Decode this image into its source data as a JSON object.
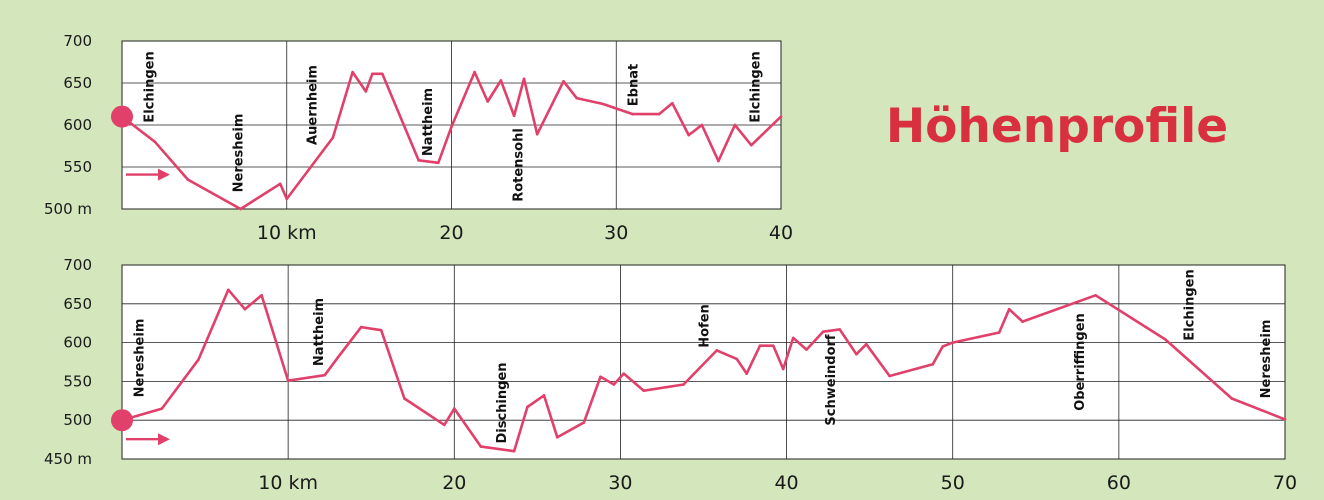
{
  "title": "Höhenprofile",
  "colors": {
    "background": "#d3e6bc",
    "line": "#e0406a",
    "title": "#d8303f"
  },
  "chart_data": [
    {
      "type": "line",
      "x_ticks": [
        "10 km",
        "20",
        "30",
        "40"
      ],
      "y_ticks": [
        "500 m",
        "550",
        "600",
        "650",
        "700"
      ],
      "xlim": [
        0,
        40
      ],
      "ylim": [
        500,
        700
      ],
      "grid": true,
      "start_marker": {
        "x": 0,
        "y": 610
      },
      "x": [
        0,
        2,
        4,
        7.2,
        9.6,
        10,
        12.8,
        14,
        14.8,
        15.2,
        15.8,
        18,
        19.2,
        20,
        21.4,
        22.2,
        23,
        23.8,
        24.4,
        25.2,
        26.8,
        27.6,
        29.2,
        31,
        32.6,
        33.4,
        34.4,
        35.2,
        36.2,
        37.2,
        38.2,
        40
      ],
      "values": [
        610,
        580,
        535,
        500,
        530,
        512,
        585,
        663,
        640,
        661,
        661,
        558,
        555,
        598,
        663,
        628,
        653,
        611,
        655,
        589,
        652,
        632,
        625,
        613,
        613,
        626,
        588,
        600,
        557,
        600,
        576,
        610
      ],
      "places": [
        {
          "name": "Elchingen",
          "x": 1.6
        },
        {
          "name": "Neresheim",
          "x": 7.0
        },
        {
          "name": "Auernheim",
          "x": 11.5
        },
        {
          "name": "Nattheim",
          "x": 18.5
        },
        {
          "name": "Rotensohl",
          "x": 24.0
        },
        {
          "name": "Ebnat",
          "x": 31.0
        },
        {
          "name": "Elchingen",
          "x": 38.4
        }
      ]
    },
    {
      "type": "line",
      "x_ticks": [
        "10 km",
        "20",
        "30",
        "40",
        "50",
        "60",
        "70"
      ],
      "y_ticks": [
        "450 m",
        "500",
        "550",
        "600",
        "650",
        "700"
      ],
      "xlim": [
        0,
        70
      ],
      "ylim": [
        450,
        700
      ],
      "grid": true,
      "start_marker": {
        "x": 0,
        "y": 500
      },
      "x": [
        0,
        2.4,
        4.6,
        6.4,
        7.4,
        8.4,
        10,
        12.2,
        13,
        14.4,
        15.6,
        17,
        19.4,
        20,
        21.6,
        23.6,
        24.4,
        25.4,
        26.2,
        27.8,
        28.8,
        29.6,
        30.2,
        31.4,
        33.8,
        35.8,
        37,
        37.6,
        38.4,
        39.2,
        39.8,
        40.4,
        41.2,
        42.2,
        43.2,
        44.2,
        44.8,
        46.2,
        48.8,
        49.4,
        50,
        52.8,
        53.4,
        54.2,
        58.6,
        62.8,
        66.8,
        70
      ],
      "values": [
        500,
        515,
        578,
        668,
        643,
        661,
        551,
        558,
        581,
        620,
        616,
        528,
        494,
        515,
        466,
        460,
        517,
        532,
        478,
        497,
        556,
        546,
        560,
        538,
        546,
        590,
        579,
        560,
        596,
        596,
        566,
        606,
        591,
        614,
        617,
        585,
        598,
        557,
        572,
        595,
        600,
        613,
        643,
        627,
        661,
        604,
        528,
        501
      ],
      "places": [
        {
          "name": "Neresheim",
          "x": 1.0
        },
        {
          "name": "Nattheim",
          "x": 11.8
        },
        {
          "name": "Dischingen",
          "x": 22.8
        },
        {
          "name": "Hofen",
          "x": 35.0
        },
        {
          "name": "Schweindorf",
          "x": 42.6
        },
        {
          "name": "Oberriffingen",
          "x": 57.6
        },
        {
          "name": "Elchingen",
          "x": 64.2
        },
        {
          "name": "Neresheim",
          "x": 68.8
        }
      ]
    }
  ]
}
